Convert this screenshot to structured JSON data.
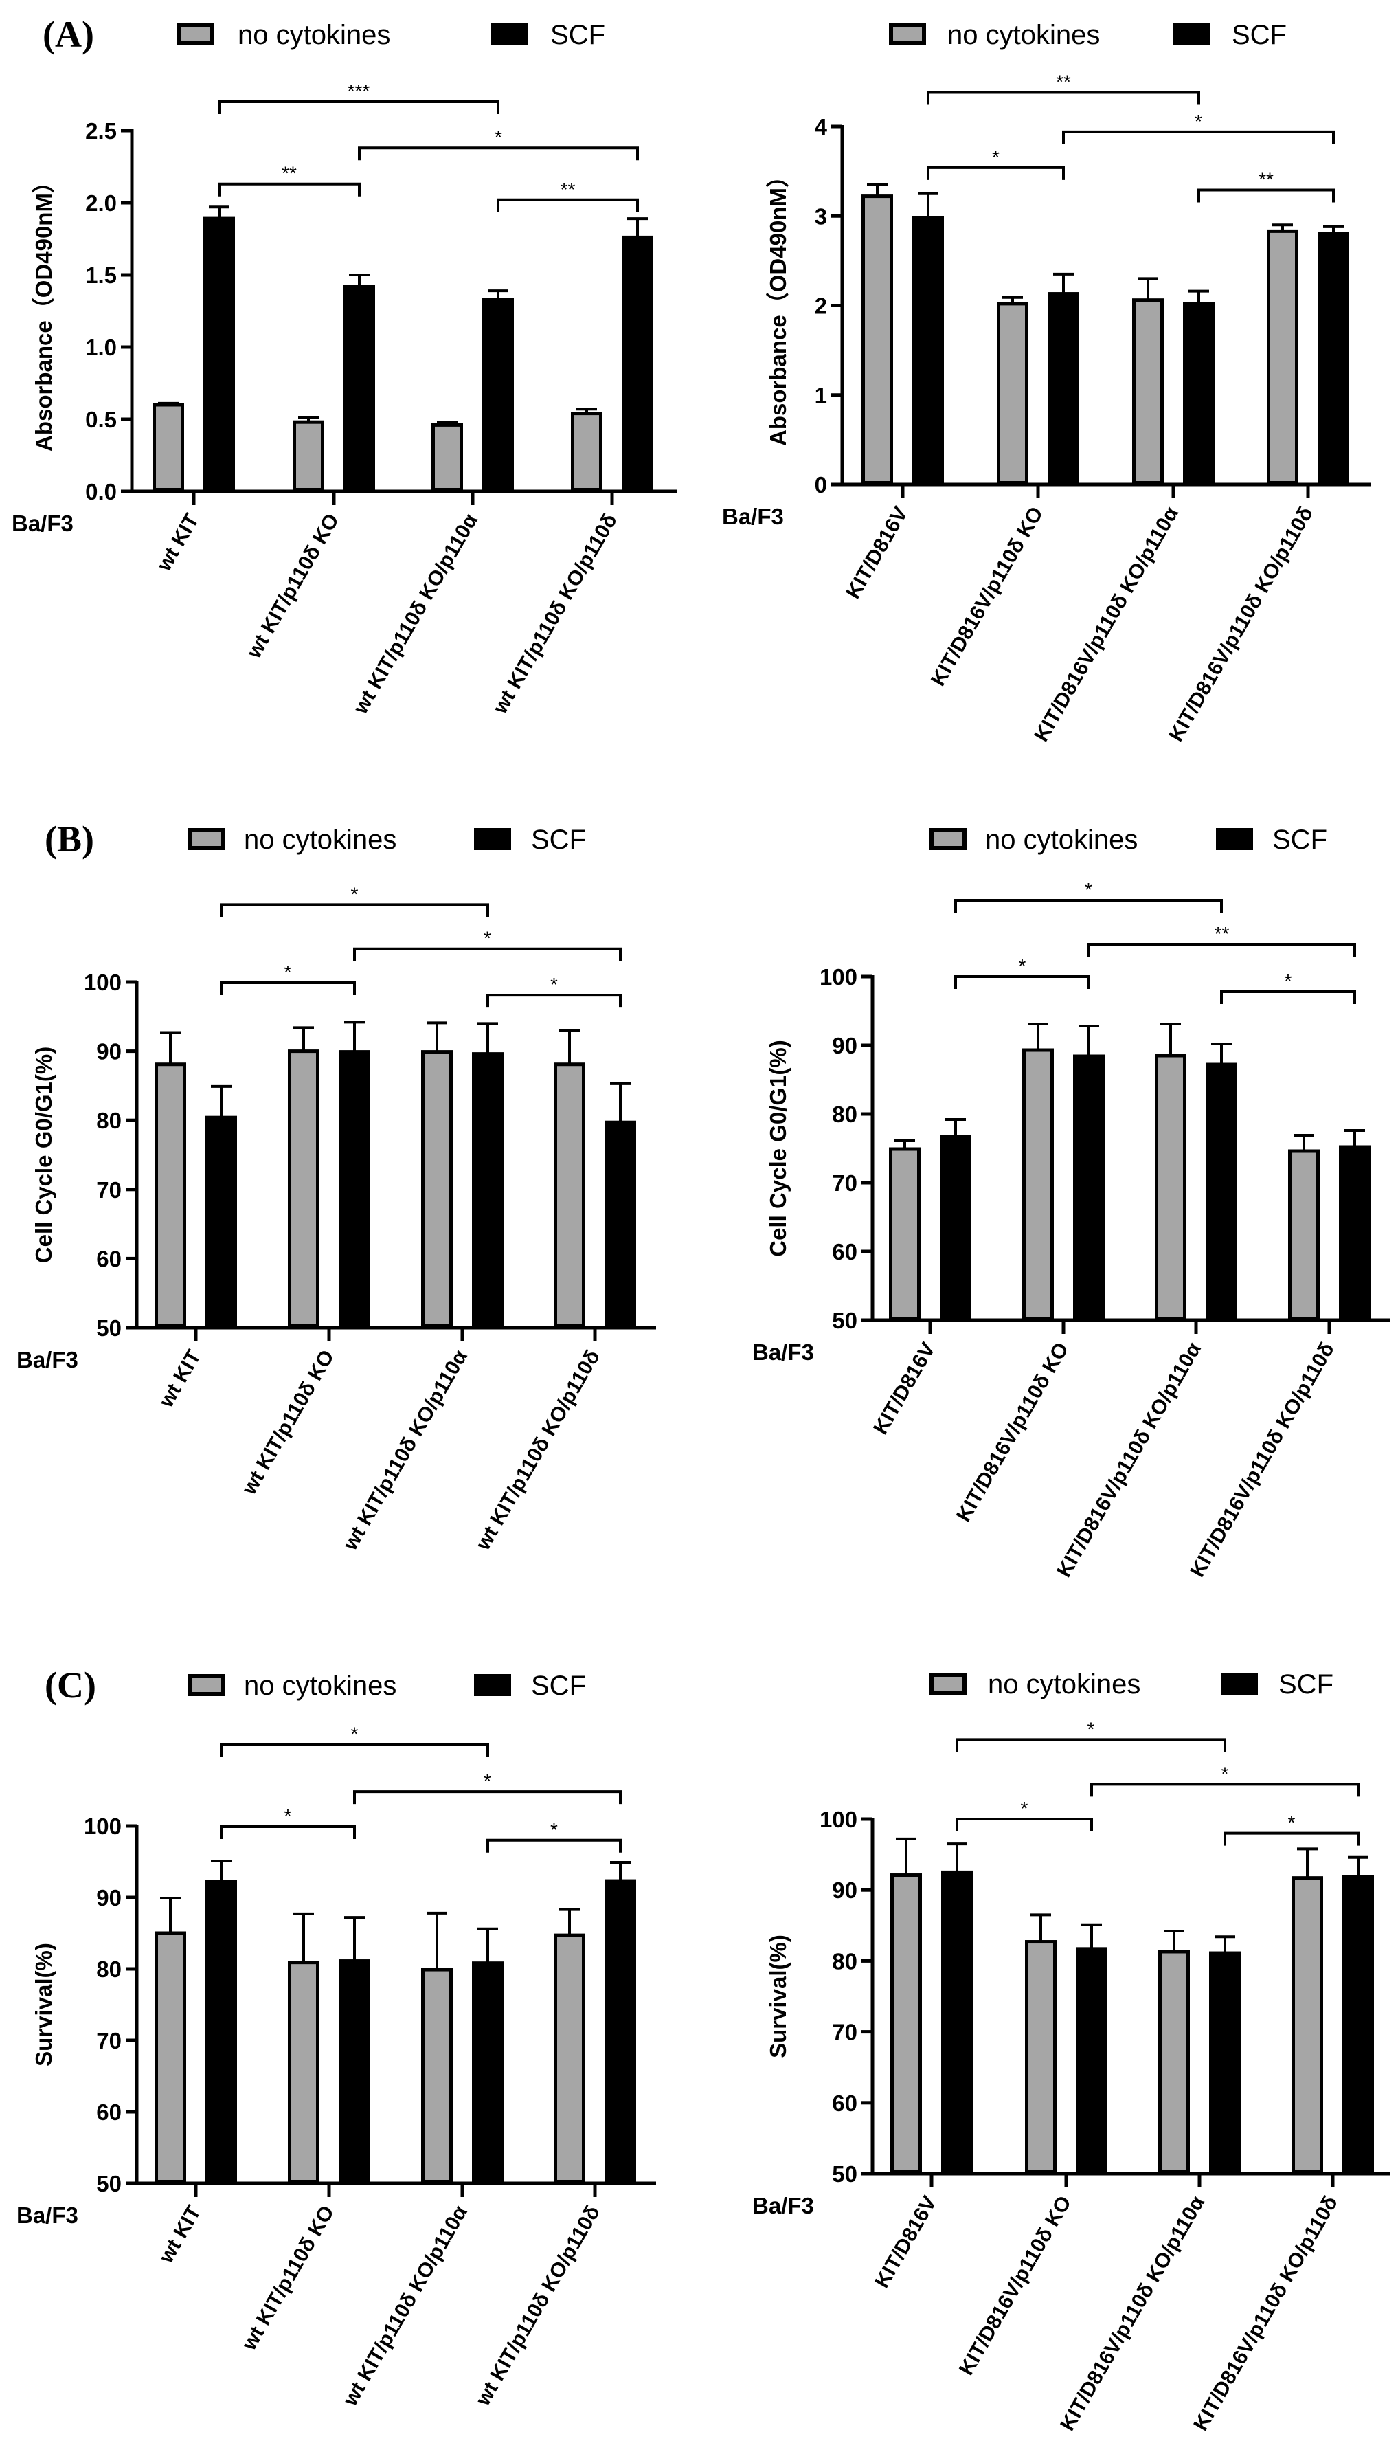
{
  "colors": {
    "no_cytokines": "#a6a6a6",
    "SCF": "#000000",
    "outline": "#000000"
  },
  "chart_data": [
    {
      "type": "bar",
      "panel_label": "(A)",
      "legend": [
        "no cytokines",
        "SCF"
      ],
      "ylabel": "Absorbance（OD490nM）",
      "ylim": [
        0,
        2.5
      ],
      "y_ticks": [
        "0.0",
        "0.5",
        "1.0",
        "1.5",
        "2.0",
        "2.5"
      ],
      "x_prefix": "Ba/F3",
      "categories": [
        "wt KIT",
        "wt KIT/p110δ KO",
        "wt KIT/p110δ KO/p110α",
        "wt KIT/p110δ KO/p110δ"
      ],
      "series": [
        {
          "name": "no cytokines",
          "values": [
            0.6,
            0.48,
            0.46,
            0.54
          ],
          "errors": [
            0.01,
            0.03,
            0.02,
            0.03
          ]
        },
        {
          "name": "SCF",
          "values": [
            1.89,
            1.42,
            1.33,
            1.76
          ],
          "errors": [
            0.08,
            0.08,
            0.06,
            0.13
          ]
        }
      ],
      "significance": [
        {
          "from": 0,
          "to": 2,
          "y": 2.7,
          "label": "***"
        },
        {
          "from": 1,
          "to": 3,
          "y": 2.38,
          "label": "*"
        },
        {
          "from": 0,
          "to": 1,
          "y": 2.13,
          "label": "**"
        },
        {
          "from": 2,
          "to": 3,
          "y": 2.02,
          "label": "**"
        }
      ]
    },
    {
      "type": "bar",
      "panel_label": "",
      "legend": [
        "no cytokines",
        "SCF"
      ],
      "ylabel": "Absorbance（OD490nM）",
      "ylim": [
        0,
        4
      ],
      "y_ticks": [
        "0",
        "1",
        "2",
        "3",
        "4"
      ],
      "x_prefix": "Ba/F3",
      "categories": [
        "KIT/D816V",
        "KIT/D816V/p110δ KO",
        "KIT/D816V/p110δ KO/p110α",
        "KIT/D816V/p110δ KO/p110δ"
      ],
      "series": [
        {
          "name": "no cytokines",
          "values": [
            3.22,
            2.02,
            2.06,
            2.83
          ],
          "errors": [
            0.13,
            0.07,
            0.24,
            0.07
          ]
        },
        {
          "name": "SCF",
          "values": [
            2.98,
            2.13,
            2.02,
            2.8
          ],
          "errors": [
            0.27,
            0.22,
            0.14,
            0.08
          ]
        }
      ],
      "significance": [
        {
          "from": 0,
          "to": 2,
          "y": 4.38,
          "label": "**"
        },
        {
          "from": 1,
          "to": 3,
          "y": 3.94,
          "label": "*"
        },
        {
          "from": 0,
          "to": 1,
          "y": 3.54,
          "label": "*"
        },
        {
          "from": 2,
          "to": 3,
          "y": 3.29,
          "label": "**"
        }
      ]
    },
    {
      "type": "bar",
      "panel_label": "(B)",
      "legend": [
        "no cytokines",
        "SCF"
      ],
      "ylabel": "Cell Cycle G0/G1(%)",
      "ylim": [
        50,
        100
      ],
      "y_ticks": [
        "50",
        "60",
        "70",
        "80",
        "90",
        "100"
      ],
      "x_prefix": "Ba/F3",
      "categories": [
        "wt KIT",
        "wt KIT/p110δ KO",
        "wt KIT/p110δ KO/p110α",
        "wt KIT/p110δ KO/p110δ"
      ],
      "series": [
        {
          "name": "no cytokines",
          "values": [
            88.1,
            90.0,
            89.9,
            88.1
          ],
          "errors": [
            4.6,
            3.4,
            4.2,
            4.9
          ]
        },
        {
          "name": "SCF",
          "values": [
            80.4,
            89.9,
            89.6,
            79.7
          ],
          "errors": [
            4.5,
            4.3,
            4.4,
            5.6
          ]
        }
      ],
      "significance": [
        {
          "from": 0,
          "to": 2,
          "y": 111.2,
          "label": "*"
        },
        {
          "from": 1,
          "to": 3,
          "y": 104.8,
          "label": "*"
        },
        {
          "from": 0,
          "to": 1,
          "y": 99.9,
          "label": "*"
        },
        {
          "from": 2,
          "to": 3,
          "y": 98.1,
          "label": "*"
        }
      ]
    },
    {
      "type": "bar",
      "panel_label": "",
      "legend": [
        "no cytokines",
        "SCF"
      ],
      "ylabel": "Cell Cycle G0/G1(%)",
      "ylim": [
        50,
        100
      ],
      "y_ticks": [
        "50",
        "60",
        "70",
        "80",
        "90",
        "100"
      ],
      "x_prefix": "Ba/F3",
      "categories": [
        "KIT/D816V",
        "KIT/D816V/p110δ KO",
        "KIT/D816V/p110δ KO/p110α",
        "KIT/D816V/p110δ KO/p110δ"
      ],
      "series": [
        {
          "name": "no cytokines",
          "values": [
            74.9,
            89.3,
            88.5,
            74.6
          ],
          "errors": [
            1.2,
            3.8,
            4.6,
            2.3
          ]
        },
        {
          "name": "SCF",
          "values": [
            76.7,
            88.4,
            87.2,
            75.2
          ],
          "errors": [
            2.5,
            4.4,
            3.0,
            2.4
          ]
        }
      ],
      "significance": [
        {
          "from": 0,
          "to": 2,
          "y": 111.1,
          "label": "*"
        },
        {
          "from": 1,
          "to": 3,
          "y": 104.7,
          "label": "**"
        },
        {
          "from": 0,
          "to": 1,
          "y": 100.0,
          "label": "*"
        },
        {
          "from": 2,
          "to": 3,
          "y": 97.8,
          "label": "*"
        }
      ]
    },
    {
      "type": "bar",
      "panel_label": "(C)",
      "legend": [
        "no cytokines",
        "SCF"
      ],
      "ylabel": "Survival(%)",
      "ylim": [
        50,
        100
      ],
      "y_ticks": [
        "50",
        "60",
        "70",
        "80",
        "90",
        "100"
      ],
      "x_prefix": "Ba/F3",
      "categories": [
        "wt KIT",
        "wt KIT/p110δ KO",
        "wt KIT/p110δ KO/p110α",
        "wt KIT/p110δ KO/p110δ"
      ],
      "series": [
        {
          "name": "no cytokines",
          "values": [
            85.0,
            80.9,
            79.9,
            84.7
          ],
          "errors": [
            4.9,
            6.8,
            7.9,
            3.6
          ]
        },
        {
          "name": "SCF",
          "values": [
            92.2,
            81.1,
            80.8,
            92.3
          ],
          "errors": [
            2.9,
            6.1,
            4.8,
            2.6
          ]
        }
      ],
      "significance": [
        {
          "from": 0,
          "to": 2,
          "y": 111.4,
          "label": "*"
        },
        {
          "from": 1,
          "to": 3,
          "y": 104.8,
          "label": "*"
        },
        {
          "from": 0,
          "to": 1,
          "y": 99.9,
          "label": "*"
        },
        {
          "from": 2,
          "to": 3,
          "y": 98.0,
          "label": "*"
        }
      ]
    },
    {
      "type": "bar",
      "panel_label": "",
      "legend": [
        "no cytokines",
        "SCF"
      ],
      "ylabel": "Survival(%)",
      "ylim": [
        50,
        100
      ],
      "y_ticks": [
        "50",
        "60",
        "70",
        "80",
        "90",
        "100"
      ],
      "x_prefix": "Ba/F3",
      "categories": [
        "KIT/D816V",
        "KIT/D816V/p110δ KO",
        "KIT/D816V/p110δ KO/p110α",
        "KIT/D816V/p110δ KO/p110δ"
      ],
      "series": [
        {
          "name": "no cytokines",
          "values": [
            92.1,
            82.7,
            81.3,
            91.7
          ],
          "errors": [
            5.1,
            3.8,
            2.9,
            4.1
          ]
        },
        {
          "name": "SCF",
          "values": [
            92.5,
            81.7,
            81.1,
            91.9
          ],
          "errors": [
            4.0,
            3.4,
            2.3,
            2.7
          ]
        }
      ],
      "significance": [
        {
          "from": 0,
          "to": 2,
          "y": 111.2,
          "label": "*"
        },
        {
          "from": 1,
          "to": 3,
          "y": 104.9,
          "label": "*"
        },
        {
          "from": 0,
          "to": 1,
          "y": 100.0,
          "label": "*"
        },
        {
          "from": 2,
          "to": 3,
          "y": 98.0,
          "label": "*"
        }
      ]
    }
  ]
}
